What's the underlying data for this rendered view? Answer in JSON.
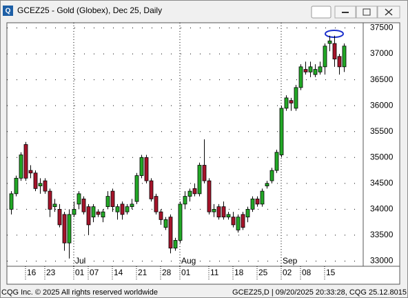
{
  "chart_data": {
    "type": "candlestick",
    "title": "GCEZ25 - Gold (Globex), Dec 25, Daily",
    "footer_left": "CQG Inc. © 2025 All rights reserved worldwide",
    "footer_right": "GCEZ25,D | 09/20/2025 20:33:28, CQG 25.12.8015",
    "categories": [
      null,
      null,
      null,
      "16",
      null,
      null,
      null,
      "23",
      null,
      null,
      null,
      null,
      null,
      "01",
      null,
      null,
      "07",
      null,
      null,
      null,
      null,
      "14",
      null,
      null,
      null,
      null,
      "21",
      null,
      null,
      null,
      null,
      "28",
      null,
      null,
      null,
      "01",
      null,
      null,
      null,
      null,
      null,
      "11",
      null,
      null,
      null,
      null,
      "18",
      null,
      null,
      null,
      null,
      "25",
      null,
      null,
      null,
      null,
      "02",
      null,
      null,
      null,
      "08",
      null,
      null,
      null,
      null,
      "15",
      null,
      null,
      null,
      null
    ],
    "months": [
      {
        "value": 13,
        "label": "Jul"
      },
      {
        "value": 35,
        "label": "Aug"
      },
      {
        "value": 56,
        "label": "Sep"
      }
    ],
    "open": [
      34000,
      34300,
      34600,
      35250,
      34750,
      34700,
      34450,
      34550,
      34350,
      34050,
      34000,
      33900,
      33350,
      33900,
      34100,
      34200,
      34050,
      33850,
      33950,
      33850,
      34050,
      34350,
      33950,
      34100,
      33950,
      34050,
      34150,
      34650,
      35000,
      34550,
      34250,
      33950,
      33650,
      33850,
      33250,
      33400,
      34100,
      34250,
      34400,
      34300,
      34850,
      34550,
      33950,
      34050,
      34050,
      33850,
      33850,
      33600,
      33900,
      33850,
      34000,
      34200,
      34100,
      34450,
      34550,
      34750,
      35050,
      35950,
      36100,
      35950,
      36350,
      36700,
      36650,
      36600,
      36650,
      36750,
      37200,
      37200,
      36950,
      36750
    ],
    "high": [
      34350,
      34650,
      35100,
      35300,
      34850,
      34750,
      34600,
      34600,
      34400,
      34200,
      34100,
      33950,
      34000,
      34150,
      34350,
      34250,
      34100,
      34100,
      34000,
      34000,
      34350,
      34400,
      34100,
      34150,
      34100,
      34200,
      34700,
      35050,
      35050,
      34600,
      34300,
      34000,
      33850,
      33900,
      33450,
      34150,
      34350,
      34400,
      34500,
      34900,
      35350,
      34600,
      34100,
      34100,
      34150,
      33950,
      33950,
      33900,
      33950,
      34050,
      34250,
      34250,
      34400,
      34550,
      34800,
      35150,
      36000,
      36200,
      36150,
      36400,
      36800,
      36850,
      36850,
      36800,
      36850,
      37200,
      37350,
      37350,
      37000,
      37200
    ],
    "low": [
      33900,
      34250,
      34550,
      34550,
      34600,
      34350,
      34300,
      34300,
      33850,
      33950,
      33650,
      33200,
      33050,
      33850,
      34000,
      33900,
      33500,
      33750,
      33850,
      33750,
      34000,
      33950,
      33800,
      33800,
      33900,
      34000,
      34100,
      34600,
      34500,
      34150,
      33900,
      33700,
      33600,
      33150,
      33200,
      33350,
      34000,
      34150,
      34250,
      34250,
      34500,
      33900,
      33850,
      33800,
      33800,
      33800,
      33650,
      33550,
      33600,
      33750,
      33950,
      34050,
      34050,
      34400,
      34500,
      34700,
      35000,
      35900,
      35900,
      35900,
      36300,
      36600,
      36550,
      36550,
      36600,
      36600,
      37050,
      36750,
      36600,
      36650
    ],
    "close": [
      34300,
      34600,
      35050,
      34600,
      34700,
      34400,
      34500,
      34350,
      34000,
      34100,
      33700,
      33350,
      33900,
      34000,
      34300,
      33950,
      33700,
      34050,
      33900,
      33950,
      34250,
      34050,
      34050,
      33900,
      34050,
      34100,
      34650,
      35000,
      34550,
      34200,
      33950,
      33800,
      33800,
      33250,
      33400,
      34100,
      34250,
      34350,
      34300,
      34850,
      34550,
      33950,
      34000,
      33850,
      33850,
      33900,
      33700,
      33850,
      33650,
      34000,
      34200,
      34100,
      34350,
      34500,
      34750,
      35100,
      35950,
      36150,
      36050,
      36350,
      36750,
      36650,
      36750,
      36700,
      36750,
      37150,
      37250,
      36900,
      36750,
      37150
    ],
    "up_color": "#22a826",
    "down_color": "#a5132a",
    "ylim": [
      32900,
      37600
    ],
    "yticks": [
      33000,
      33500,
      34000,
      34500,
      35000,
      35500,
      36000,
      36500,
      37000,
      37500
    ],
    "grid": true
  }
}
